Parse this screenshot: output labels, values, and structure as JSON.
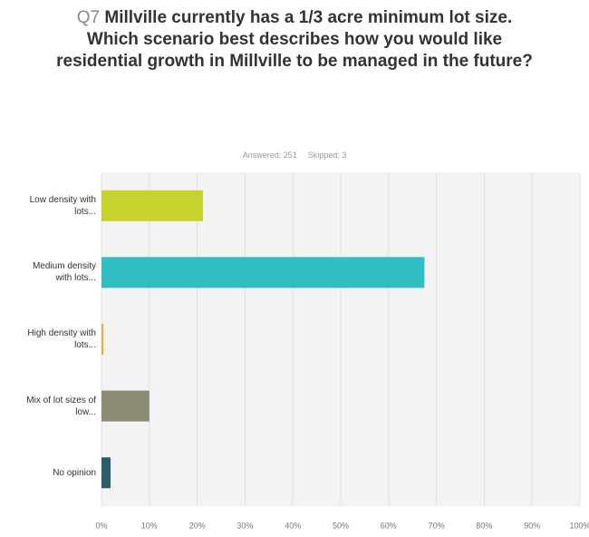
{
  "chart_data": {
    "type": "bar",
    "orientation": "horizontal",
    "question_number": "Q7",
    "title": "Millville currently has a 1/3 acre minimum lot size. Which scenario best describes how you would like residential growth in Millville to be managed in the future?",
    "answered": "Answered: 251",
    "skipped": "Skipped: 3",
    "categories": [
      "Low density with lots...",
      "Medium density with lots...",
      "High density with lots...",
      "Mix of lot sizes of low...",
      "No opinion"
    ],
    "values": [
      21.2,
      67.5,
      0.4,
      10.0,
      1.9
    ],
    "colors": [
      "#c8d22e",
      "#2fbfc2",
      "#f2a93b",
      "#8b8b75",
      "#2c5d68"
    ],
    "xlim": [
      0,
      100
    ],
    "xticks": [
      {
        "value": 0,
        "label": "0%"
      },
      {
        "value": 10,
        "label": "10%"
      },
      {
        "value": 20,
        "label": "20%"
      },
      {
        "value": 30,
        "label": "30%"
      },
      {
        "value": 40,
        "label": "40%"
      },
      {
        "value": 50,
        "label": "50%"
      },
      {
        "value": 60,
        "label": "60%"
      },
      {
        "value": 70,
        "label": "70%"
      },
      {
        "value": 80,
        "label": "80%"
      },
      {
        "value": 90,
        "label": "90%"
      },
      {
        "value": 100,
        "label": "100%"
      }
    ],
    "grid": true
  }
}
